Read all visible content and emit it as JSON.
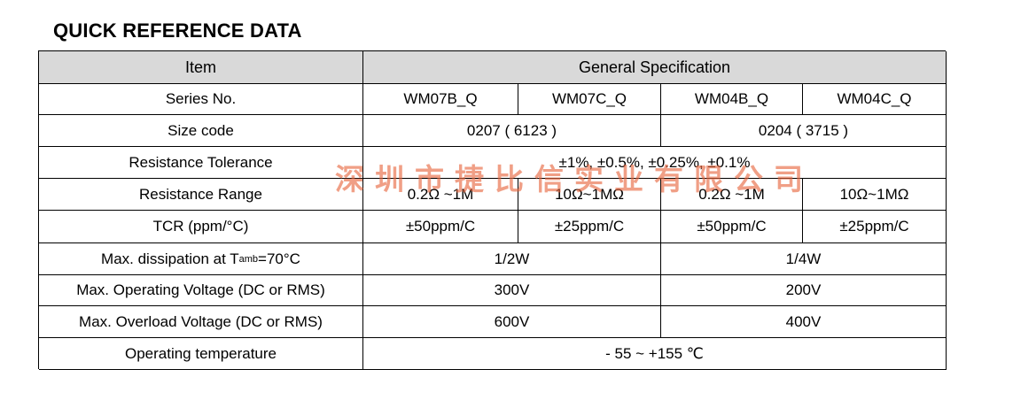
{
  "title": "QUICK REFERENCE DATA",
  "header": {
    "item": "Item",
    "spec": "General Specification"
  },
  "rows": {
    "series": {
      "label": "Series No.",
      "values": [
        "WM07B_Q",
        "WM07C_Q",
        "WM04B_Q",
        "WM04C_Q"
      ]
    },
    "size_code": {
      "label": "Size code",
      "values": [
        "0207 ( 6123 )",
        "0204 ( 3715 )"
      ]
    },
    "tolerance": {
      "label": "Resistance Tolerance",
      "value": "±1%, ±0.5%, ±0.25%, ±0.1%"
    },
    "range": {
      "label": "Resistance Range",
      "values": [
        "0.2Ω ~1M",
        "10Ω~1MΩ",
        "0.2Ω ~1M",
        "10Ω~1MΩ"
      ]
    },
    "tcr": {
      "label": "TCR (ppm/°C)",
      "values": [
        "±50ppm/C",
        "±25ppm/C",
        "±50ppm/C",
        "±25ppm/C"
      ]
    },
    "dissipation": {
      "label_pre": "Max. dissipation at T",
      "label_sub": "amb",
      "label_post": "=70°C",
      "values": [
        "1/2W",
        "1/4W"
      ]
    },
    "op_voltage": {
      "label": "Max. Operating Voltage (DC or RMS)",
      "values": [
        "300V",
        "200V"
      ]
    },
    "ol_voltage": {
      "label": "Max. Overload Voltage (DC or RMS)",
      "values": [
        "600V",
        "400V"
      ]
    },
    "op_temp": {
      "label": "Operating temperature",
      "value": "- 55 ~ +155 ℃"
    }
  },
  "watermark": "深圳市捷比信实业有限公司"
}
